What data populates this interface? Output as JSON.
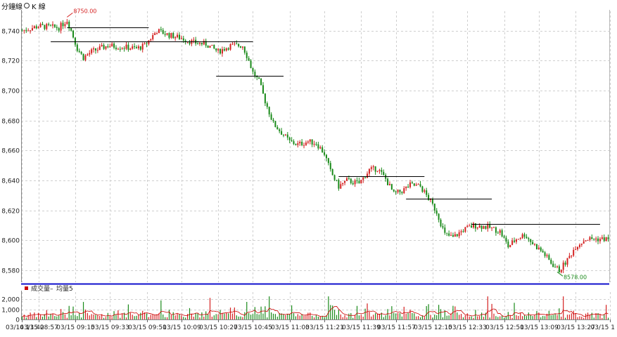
{
  "header": {
    "title": "分鐘線",
    "option_label": "K 線",
    "option_icon": "radio-icon"
  },
  "volume_legend": {
    "items": [
      "成交量",
      "均量5"
    ],
    "colors": {
      "volume": "#cc0000",
      "average": "#cc0000"
    }
  },
  "colors": {
    "up": "#d42020",
    "down": "#1a8a1a",
    "divider": "#1010cc",
    "grid": "#cfcfcf"
  },
  "chart_data": [
    {
      "type": "candlestick",
      "yticks": [
        "8,740",
        "8,720",
        "8,700",
        "8,680",
        "8,660",
        "8,640",
        "8,620",
        "8,600",
        "8,580"
      ],
      "ylim": [
        8574,
        8752
      ],
      "grid": true,
      "annotations": {
        "high_label": "8750.00",
        "low_label": "8578.00"
      },
      "close_path": [
        {
          "t": 0,
          "v": 8740
        },
        {
          "t": 8,
          "v": 8743
        },
        {
          "t": 18,
          "v": 8742
        },
        {
          "t": 22,
          "v": 8747
        },
        {
          "t": 24,
          "v": 8740
        },
        {
          "t": 27,
          "v": 8728
        },
        {
          "t": 30,
          "v": 8722
        },
        {
          "t": 34,
          "v": 8726
        },
        {
          "t": 42,
          "v": 8730
        },
        {
          "t": 50,
          "v": 8729
        },
        {
          "t": 56,
          "v": 8728
        },
        {
          "t": 60,
          "v": 8730
        },
        {
          "t": 66,
          "v": 8740
        },
        {
          "t": 72,
          "v": 8737
        },
        {
          "t": 78,
          "v": 8735
        },
        {
          "t": 84,
          "v": 8732
        },
        {
          "t": 90,
          "v": 8731
        },
        {
          "t": 96,
          "v": 8726
        },
        {
          "t": 102,
          "v": 8730
        },
        {
          "t": 108,
          "v": 8730
        },
        {
          "t": 111,
          "v": 8720
        },
        {
          "t": 113,
          "v": 8712
        },
        {
          "t": 116,
          "v": 8706
        },
        {
          "t": 119,
          "v": 8693
        },
        {
          "t": 123,
          "v": 8678
        },
        {
          "t": 127,
          "v": 8672
        },
        {
          "t": 131,
          "v": 8666
        },
        {
          "t": 135,
          "v": 8664
        },
        {
          "t": 140,
          "v": 8666
        },
        {
          "t": 144,
          "v": 8665
        },
        {
          "t": 148,
          "v": 8658
        },
        {
          "t": 151,
          "v": 8646
        },
        {
          "t": 155,
          "v": 8636
        },
        {
          "t": 159,
          "v": 8640
        },
        {
          "t": 165,
          "v": 8638
        },
        {
          "t": 170,
          "v": 8647
        },
        {
          "t": 174,
          "v": 8648
        },
        {
          "t": 178,
          "v": 8641
        },
        {
          "t": 182,
          "v": 8631
        },
        {
          "t": 186,
          "v": 8633
        },
        {
          "t": 190,
          "v": 8637
        },
        {
          "t": 195,
          "v": 8636
        },
        {
          "t": 199,
          "v": 8628
        },
        {
          "t": 203,
          "v": 8619
        },
        {
          "t": 207,
          "v": 8604
        },
        {
          "t": 211,
          "v": 8602
        },
        {
          "t": 216,
          "v": 8607
        },
        {
          "t": 221,
          "v": 8610
        },
        {
          "t": 228,
          "v": 8609
        },
        {
          "t": 234,
          "v": 8606
        },
        {
          "t": 238,
          "v": 8596
        },
        {
          "t": 242,
          "v": 8601
        },
        {
          "t": 246,
          "v": 8604
        },
        {
          "t": 250,
          "v": 8598
        },
        {
          "t": 255,
          "v": 8592
        },
        {
          "t": 259,
          "v": 8585
        },
        {
          "t": 263,
          "v": 8580
        },
        {
          "t": 267,
          "v": 8587
        },
        {
          "t": 271,
          "v": 8596
        },
        {
          "t": 276,
          "v": 8601
        }
      ],
      "resistance_lines": [
        {
          "from": 22,
          "to": 62,
          "value": 8742
        },
        {
          "from": 14,
          "to": 113,
          "value": 8733
        },
        {
          "from": 95,
          "to": 128,
          "value": 8710
        },
        {
          "from": 155,
          "to": 197,
          "value": 8643
        },
        {
          "from": 188,
          "to": 230,
          "value": 8628
        },
        {
          "from": 220,
          "to": 283,
          "value": 8611
        }
      ]
    },
    {
      "type": "bar",
      "series": [
        {
          "name": "成交量",
          "values": []
        },
        {
          "name": "均量5",
          "values": []
        }
      ],
      "yticks": [
        "2,000",
        "1,000",
        "0"
      ],
      "ylim": [
        0,
        2450
      ],
      "xticks": [
        "03/14 13:42",
        "03/15 08:57",
        "03/15 09:15",
        "03/15 09:33",
        "03/15 09:51",
        "03/15 10:09",
        "03/15 10:27",
        "03/15 10:45",
        "03/15 11:03",
        "03/15 11:21",
        "03/15 11:39",
        "03/15 11:57",
        "03/15 12:15",
        "03/15 12:33",
        "03/15 12:51",
        "03/15 13:09",
        "03/15 13:27",
        "03/15 1"
      ]
    }
  ]
}
